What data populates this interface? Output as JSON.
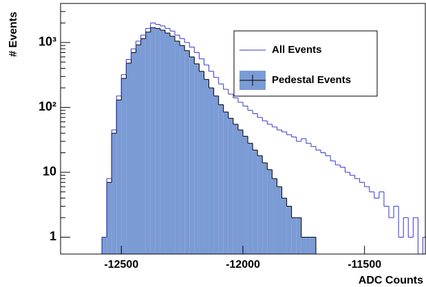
{
  "chart_data": {
    "type": "histogram",
    "xlabel": "ADC Counts",
    "ylabel": "# Events",
    "bins": [
      -12580,
      -12560,
      -12540,
      -12520,
      -12500,
      -12480,
      -12460,
      -12440,
      -12420,
      -12400,
      -12380,
      -12360,
      -12340,
      -12320,
      -12300,
      -12280,
      -12260,
      -12240,
      -12220,
      -12200,
      -12180,
      -12160,
      -12140,
      -12120,
      -12100,
      -12080,
      -12060,
      -12040,
      -12020,
      -12000,
      -11980,
      -11960,
      -11940,
      -11920,
      -11900,
      -11880,
      -11860,
      -11840,
      -11820,
      -11800,
      -11780,
      -11760,
      -11740,
      -11720,
      -11700,
      -11680,
      -11660,
      -11640,
      -11620,
      -11600,
      -11580,
      -11560,
      -11540,
      -11520,
      -11500,
      -11480,
      -11460,
      -11440,
      -11420,
      -11400,
      -11380,
      -11360,
      -11340,
      -11320,
      -11300,
      -11280,
      -11260,
      -11240
    ],
    "series": [
      {
        "name": "All Events",
        "color": "#3333cc",
        "fill": "none",
        "values": [
          1,
          8,
          45,
          150,
          320,
          550,
          800,
          1050,
          1300,
          1650,
          2000,
          1900,
          1800,
          1650,
          1500,
          1300,
          1150,
          1000,
          850,
          700,
          560,
          450,
          360,
          290,
          230,
          190,
          160,
          140,
          120,
          105,
          90,
          80,
          70,
          62,
          55,
          50,
          45,
          42,
          38,
          35,
          30,
          33,
          28,
          25,
          22,
          20,
          18,
          15,
          13,
          12,
          10,
          9,
          8,
          7,
          6,
          5,
          4,
          5,
          3,
          2,
          3,
          1,
          2,
          1,
          2,
          0,
          1
        ]
      },
      {
        "name": "Pedestal Events",
        "color": "#000000",
        "fill": "#7b9bd5",
        "values": [
          1,
          7,
          40,
          130,
          280,
          480,
          700,
          920,
          1150,
          1450,
          1700,
          1650,
          1550,
          1400,
          1250,
          1050,
          900,
          750,
          600,
          470,
          360,
          270,
          200,
          150,
          110,
          85,
          68,
          55,
          45,
          36,
          28,
          22,
          18,
          14,
          11,
          8,
          6,
          4,
          3,
          2,
          2,
          1,
          1,
          1,
          0,
          0,
          0,
          0,
          0,
          0,
          0,
          0,
          0,
          0,
          0,
          0,
          0,
          0,
          0,
          0,
          0,
          0,
          0,
          0,
          0,
          0,
          0
        ]
      }
    ],
    "xlim": [
      -12750,
      -11250
    ],
    "xticks": [
      -12500,
      -12000,
      -11500
    ],
    "ylim": [
      0.55,
      4000
    ],
    "log_y": true,
    "yticks": [
      1,
      10,
      {
        "value": 100,
        "label": "10²"
      },
      {
        "value": 1000,
        "label": "10³"
      }
    ],
    "legend": "upper right"
  }
}
